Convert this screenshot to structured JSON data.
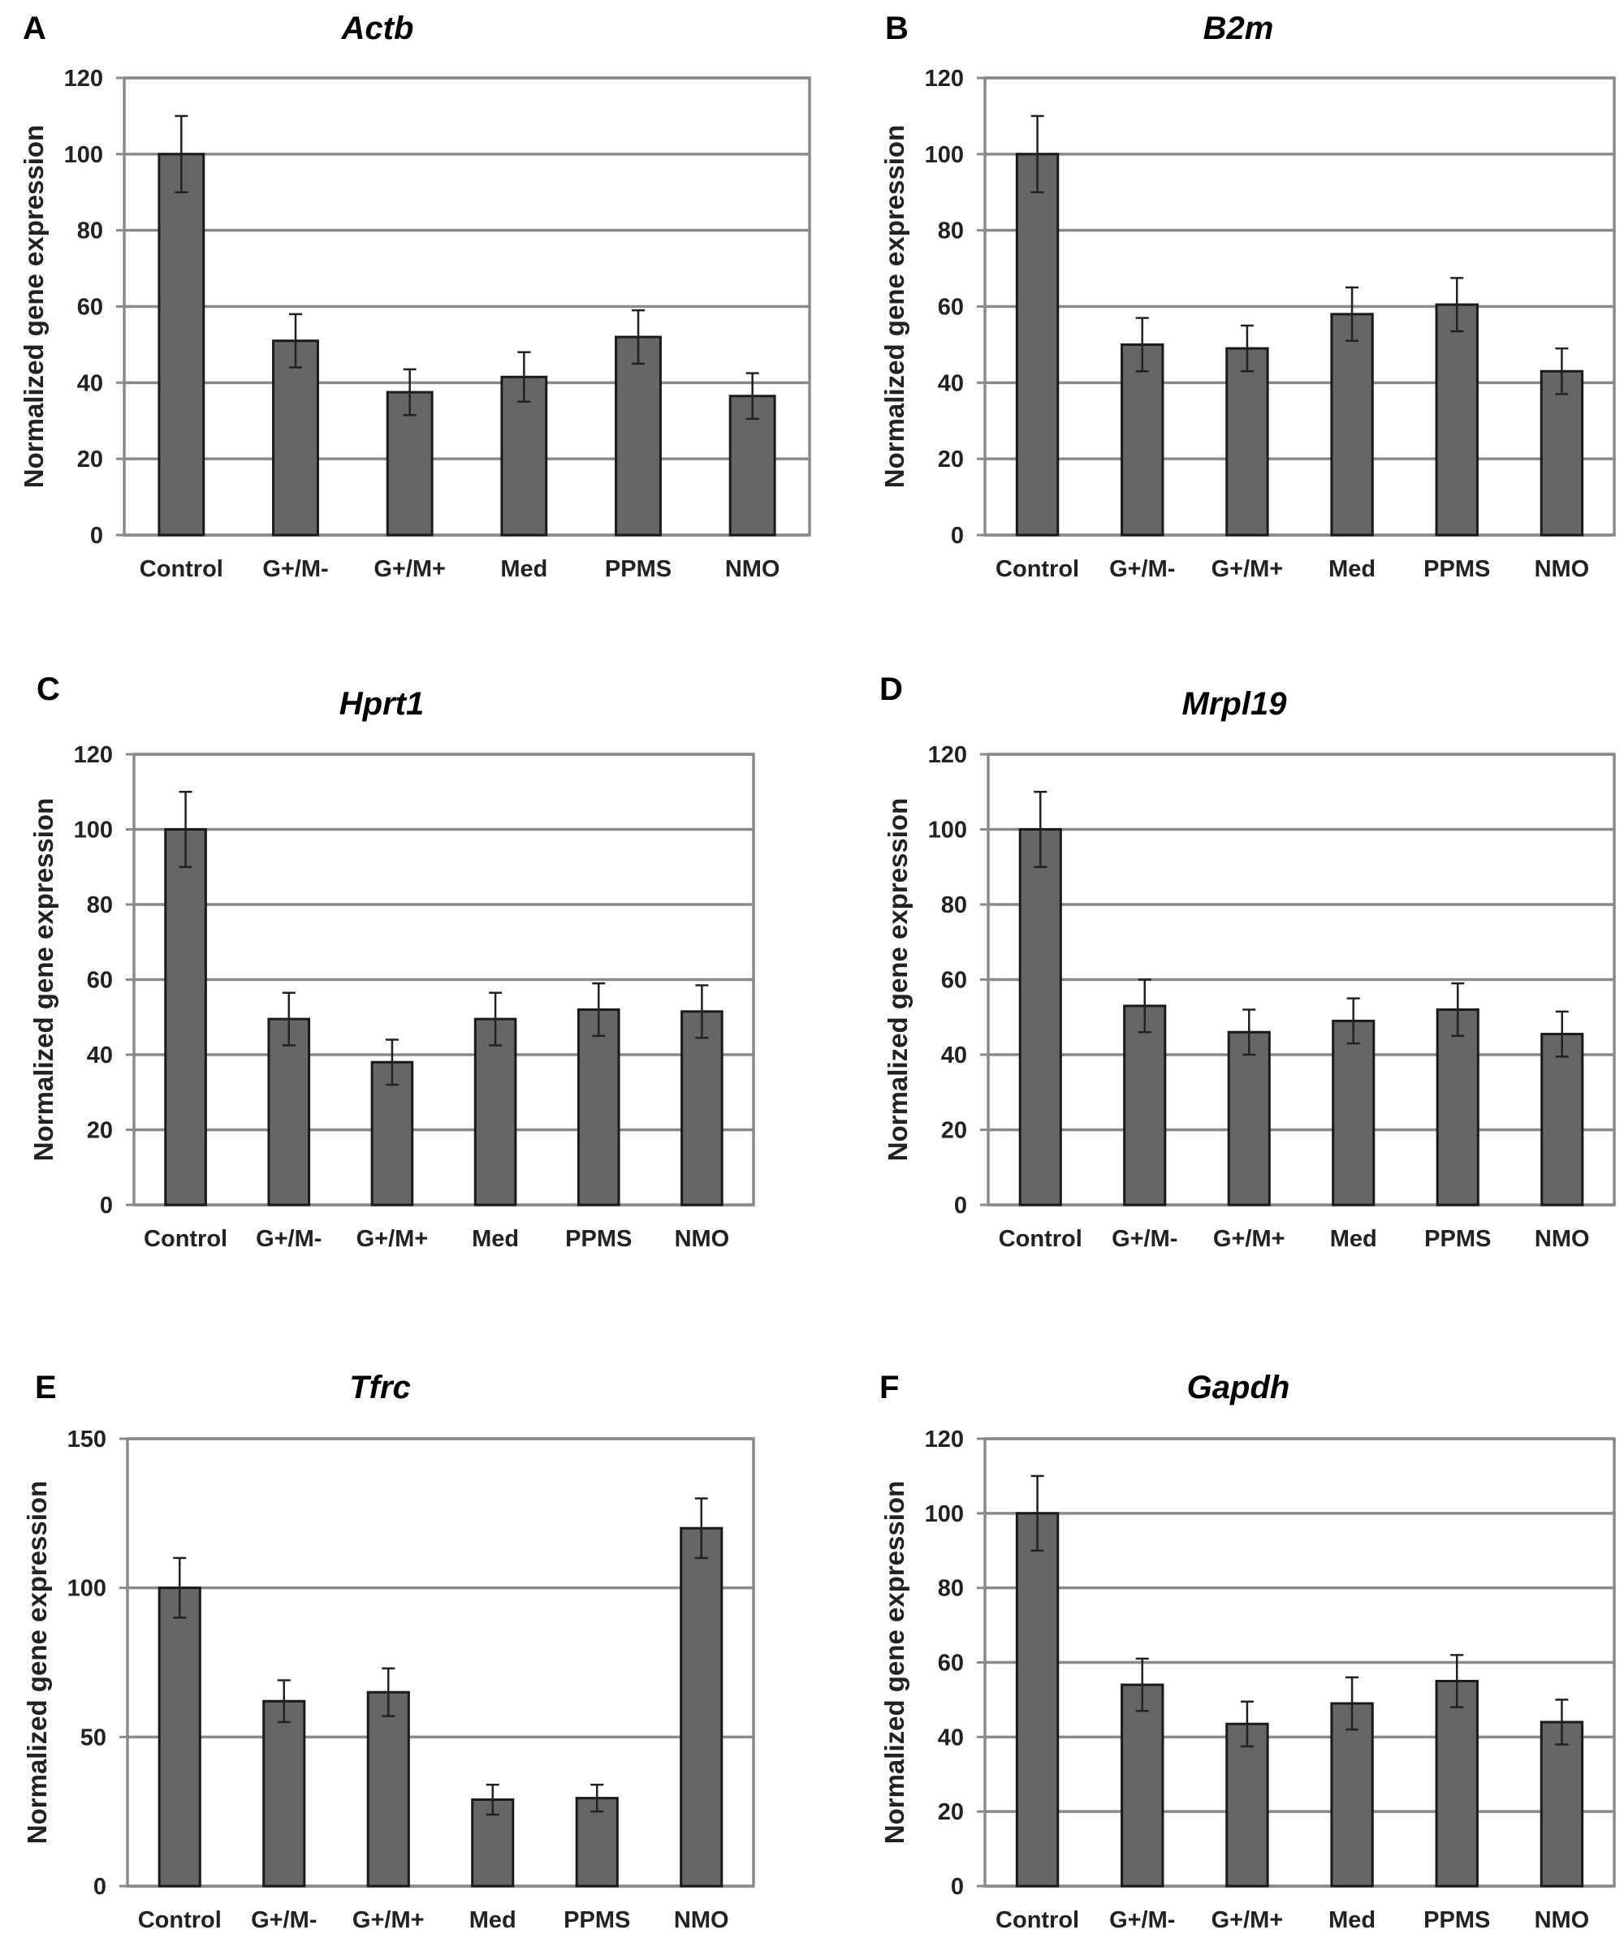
{
  "figure": {
    "chart_data": [
      {
        "type": "bar",
        "panel": "A",
        "title": "Actb",
        "xlabel": "",
        "ylabel": "Normalized gene expression",
        "ylim": [
          0,
          120
        ],
        "yticks": [
          0,
          20,
          40,
          60,
          80,
          100,
          120
        ],
        "categories": [
          "Control",
          "G+/M-",
          "G+/M+",
          "Med",
          "PPMS",
          "NMO"
        ],
        "values": [
          100,
          51,
          37.5,
          41.5,
          52,
          36.5
        ],
        "errors": [
          10,
          7,
          6,
          6.5,
          7,
          6
        ],
        "bar_color": "#666666"
      },
      {
        "type": "bar",
        "panel": "B",
        "title": "B2m",
        "xlabel": "",
        "ylabel": "Normalized gene expression",
        "ylim": [
          0,
          120
        ],
        "yticks": [
          0,
          20,
          40,
          60,
          80,
          100,
          120
        ],
        "categories": [
          "Control",
          "G+/M-",
          "G+/M+",
          "Med",
          "PPMS",
          "NMO"
        ],
        "values": [
          100,
          50,
          49,
          58,
          60.5,
          43
        ],
        "errors": [
          10,
          7,
          6,
          7,
          7,
          6
        ],
        "bar_color": "#666666"
      },
      {
        "type": "bar",
        "panel": "C",
        "title": "Hprt1",
        "xlabel": "",
        "ylabel": "Normalized gene expression",
        "ylim": [
          0,
          120
        ],
        "yticks": [
          0,
          20,
          40,
          60,
          80,
          100,
          120
        ],
        "categories": [
          "Control",
          "G+/M-",
          "G+/M+",
          "Med",
          "PPMS",
          "NMO"
        ],
        "values": [
          100,
          49.5,
          38,
          49.5,
          52,
          51.5
        ],
        "errors": [
          10,
          7,
          6,
          7,
          7,
          7
        ],
        "bar_color": "#666666"
      },
      {
        "type": "bar",
        "panel": "D",
        "title": "Mrpl19",
        "xlabel": "",
        "ylabel": "Normalized gene expression",
        "ylim": [
          0,
          120
        ],
        "yticks": [
          0,
          20,
          40,
          60,
          80,
          100,
          120
        ],
        "categories": [
          "Control",
          "G+/M-",
          "G+/M+",
          "Med",
          "PPMS",
          "NMO"
        ],
        "values": [
          100,
          53,
          46,
          49,
          52,
          45.5
        ],
        "errors": [
          10,
          7,
          6,
          6,
          7,
          6
        ],
        "bar_color": "#666666"
      },
      {
        "type": "bar",
        "panel": "E",
        "title": "Tfrc",
        "xlabel": "",
        "ylabel": "Normalized gene expression",
        "ylim": [
          0,
          150
        ],
        "yticks": [
          0,
          50,
          100,
          150
        ],
        "categories": [
          "Control",
          "G+/M-",
          "G+/M+",
          "Med",
          "PPMS",
          "NMO"
        ],
        "values": [
          100,
          62,
          65,
          29,
          29.5,
          120
        ],
        "errors": [
          10,
          7,
          8,
          5,
          4.5,
          10
        ],
        "bar_color": "#666666"
      },
      {
        "type": "bar",
        "panel": "F",
        "title": "Gapdh",
        "xlabel": "",
        "ylabel": "Normalized gene expression",
        "ylim": [
          0,
          120
        ],
        "yticks": [
          0,
          20,
          40,
          60,
          80,
          100,
          120
        ],
        "categories": [
          "Control",
          "G+/M-",
          "G+/M+",
          "Med",
          "PPMS",
          "NMO"
        ],
        "values": [
          100,
          54,
          43.5,
          49,
          55,
          44
        ],
        "errors": [
          10,
          7,
          6,
          7,
          7,
          6
        ],
        "bar_color": "#666666"
      }
    ]
  }
}
